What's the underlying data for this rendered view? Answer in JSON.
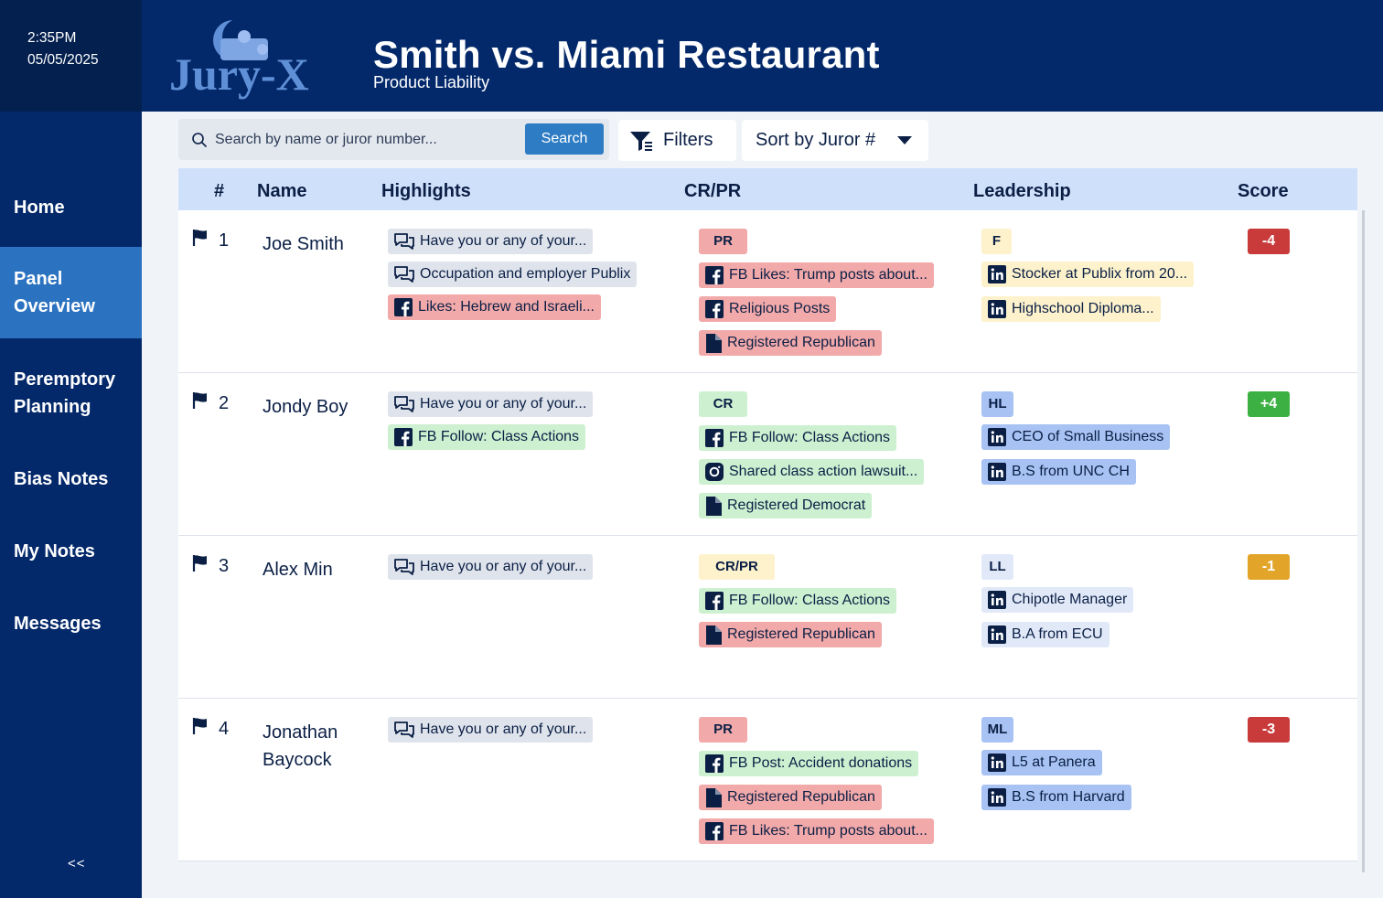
{
  "clock": {
    "time": "2:35PM",
    "date": "05/05/2025"
  },
  "app": {
    "logo_text": "Jury-X"
  },
  "nav": [
    {
      "label": "Home",
      "name": "home"
    },
    {
      "label": "Panel Overview",
      "name": "panel-overview"
    },
    {
      "label": "Peremptory Planning",
      "name": "peremptory-planning"
    },
    {
      "label": "Bias Notes",
      "name": "bias-notes"
    },
    {
      "label": "My Notes",
      "name": "my-notes"
    },
    {
      "label": "Messages",
      "name": "messages"
    }
  ],
  "collapse_label": "<<",
  "case": {
    "title": "Smith vs. Miami Restaurant",
    "subtitle": "Product Liability"
  },
  "search": {
    "placeholder": "Search by name or juror number...",
    "value": "",
    "button": "Search"
  },
  "filters_label": "Filters",
  "sort_label": "Sort by Juror #",
  "columns": {
    "num": "#",
    "name": "Name",
    "highlights": "Highlights",
    "crpr": "CR/PR",
    "leadership": "Leadership",
    "score": "Score"
  },
  "colors": {
    "negative": "#c93b3b",
    "positive": "#3cb043",
    "neutral": "#e3a42a"
  },
  "jurors": [
    {
      "num": "1",
      "name": "Joe Smith",
      "highlights": [
        {
          "text": "Have you or any of your...",
          "icon": "chat-icon",
          "color": "grey"
        },
        {
          "text": "Occupation and employer Publix",
          "icon": "chat-icon",
          "color": "grey"
        },
        {
          "text": "Likes: Hebrew and Israeli...",
          "icon": "facebook-icon",
          "color": "red"
        }
      ],
      "crpr_tag": {
        "text": "PR",
        "color": "red"
      },
      "crpr": [
        {
          "text": "FB Likes: Trump posts about...",
          "icon": "facebook-icon",
          "color": "red"
        },
        {
          "text": "Religious Posts",
          "icon": "facebook-icon",
          "color": "red"
        },
        {
          "text": "Registered Republican",
          "icon": "document-icon",
          "color": "red"
        }
      ],
      "lead_tag": {
        "text": "F",
        "color": "yellow"
      },
      "leadership": [
        {
          "text": "Stocker at Publix from 20...",
          "icon": "linkedin-icon",
          "color": "yellow"
        },
        {
          "text": "Highschool Diploma...",
          "icon": "linkedin-icon",
          "color": "yellow"
        }
      ],
      "score": "-4",
      "score_color": "#c93b3b"
    },
    {
      "num": "2",
      "name": "Jondy Boy",
      "highlights": [
        {
          "text": "Have you or any of your...",
          "icon": "chat-icon",
          "color": "grey"
        },
        {
          "text": "FB Follow: Class Actions",
          "icon": "facebook-icon",
          "color": "green"
        }
      ],
      "crpr_tag": {
        "text": "CR",
        "color": "green"
      },
      "crpr": [
        {
          "text": "FB Follow: Class Actions",
          "icon": "facebook-icon",
          "color": "green"
        },
        {
          "text": "Shared class action lawsuit...",
          "icon": "instagram-icon",
          "color": "green"
        },
        {
          "text": "Registered Democrat",
          "icon": "document-icon",
          "color": "green"
        }
      ],
      "lead_tag": {
        "text": "HL",
        "color": "blue"
      },
      "leadership": [
        {
          "text": "CEO of Small Business",
          "icon": "linkedin-icon",
          "color": "blue"
        },
        {
          "text": "B.S from UNC CH",
          "icon": "linkedin-icon",
          "color": "blue"
        }
      ],
      "score": "+4",
      "score_color": "#3cb043"
    },
    {
      "num": "3",
      "name": "Alex Min",
      "highlights": [
        {
          "text": "Have you or any of your...",
          "icon": "chat-icon",
          "color": "grey"
        }
      ],
      "crpr_tag": {
        "text": "CR/PR",
        "color": "yellow"
      },
      "crpr": [
        {
          "text": "FB Follow: Class Actions",
          "icon": "facebook-icon",
          "color": "green"
        },
        {
          "text": "Registered Republican",
          "icon": "document-icon",
          "color": "red"
        }
      ],
      "lead_tag": {
        "text": "LL",
        "color": "lightblue"
      },
      "leadership": [
        {
          "text": "Chipotle Manager",
          "icon": "linkedin-icon",
          "color": "lightblue"
        },
        {
          "text": "B.A from ECU",
          "icon": "linkedin-icon",
          "color": "lightblue"
        }
      ],
      "score": "-1",
      "score_color": "#e3a42a"
    },
    {
      "num": "4",
      "name": "Jonathan Baycock",
      "highlights": [
        {
          "text": "Have you or any of your...",
          "icon": "chat-icon",
          "color": "grey"
        }
      ],
      "crpr_tag": {
        "text": "PR",
        "color": "red"
      },
      "crpr": [
        {
          "text": "FB Post:  Accident donations",
          "icon": "facebook-icon",
          "color": "green"
        },
        {
          "text": "Registered Republican",
          "icon": "document-icon",
          "color": "red"
        },
        {
          "text": "FB Likes: Trump posts about...",
          "icon": "facebook-icon",
          "color": "red"
        }
      ],
      "lead_tag": {
        "text": "ML",
        "color": "blue"
      },
      "leadership": [
        {
          "text": "L5 at Panera",
          "icon": "linkedin-icon",
          "color": "blue"
        },
        {
          "text": "B.S from Harvard",
          "icon": "linkedin-icon",
          "color": "blue"
        }
      ],
      "score": "-3",
      "score_color": "#c93b3b"
    }
  ]
}
